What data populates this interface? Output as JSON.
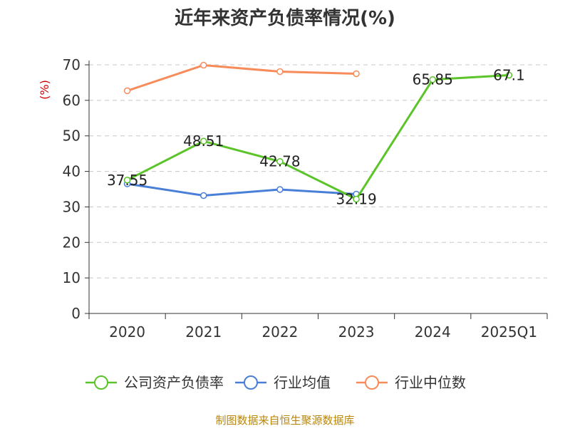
{
  "chart_data": {
    "type": "line",
    "title": "近年来资产负债率情况(%)",
    "ylabel": "(%)",
    "ylim": [
      0,
      70
    ],
    "yticks": [
      0,
      10,
      20,
      30,
      40,
      50,
      60,
      70
    ],
    "grid": true,
    "legend_position": "bottom",
    "categories": [
      "2020",
      "2021",
      "2022",
      "2023",
      "2024",
      "2025Q1"
    ],
    "series": [
      {
        "name": "公司资产负债率",
        "color": "#5bc429",
        "values": [
          37.55,
          48.51,
          42.78,
          32.19,
          65.85,
          67.1
        ],
        "labels": [
          "37.55",
          "48.51",
          "42.78",
          "32.19",
          "65.85",
          "67.1"
        ]
      },
      {
        "name": "行业均值",
        "color": "#4a7fd8",
        "values": [
          36.5,
          33.2,
          34.9,
          33.6,
          null,
          null
        ]
      },
      {
        "name": "行业中位数",
        "color": "#f78c5a",
        "values": [
          62.7,
          69.9,
          68.1,
          67.5,
          null,
          null
        ]
      }
    ]
  },
  "footer": {
    "source": "制图数据来自恒生聚源数据库"
  }
}
